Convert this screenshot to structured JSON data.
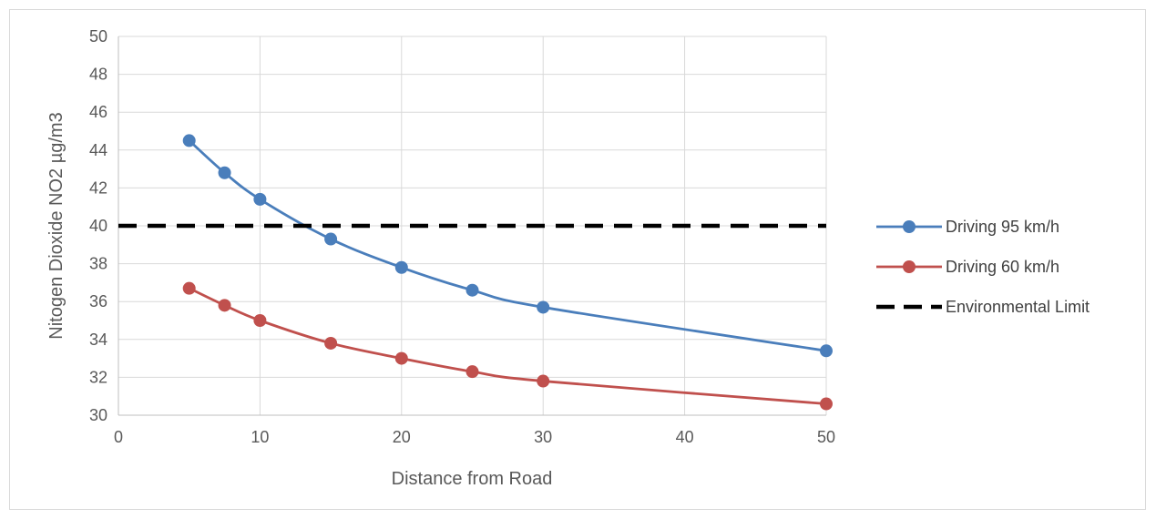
{
  "chart_data": {
    "type": "line",
    "title": "",
    "xlabel": "Distance from Road",
    "ylabel": "Nitogen Dioxide NO2 µg/m3",
    "xlim": [
      0,
      50
    ],
    "ylim": [
      30,
      50
    ],
    "x_ticks": [
      "0",
      "10",
      "20",
      "30",
      "40",
      "50"
    ],
    "y_ticks": [
      "30",
      "32",
      "34",
      "36",
      "38",
      "40",
      "42",
      "44",
      "46",
      "48",
      "50"
    ],
    "grid": true,
    "legend_position": "right",
    "series": [
      {
        "name": "Driving 95 km/h",
        "color": "#4a7ebb",
        "style": "smooth-line-with-markers",
        "x": [
          5,
          7.5,
          10,
          15,
          20,
          25,
          30,
          50
        ],
        "y": [
          44.5,
          42.8,
          41.4,
          39.3,
          37.8,
          36.6,
          35.7,
          33.4
        ]
      },
      {
        "name": "Driving 60 km/h",
        "color": "#c0504d",
        "style": "smooth-line-with-markers",
        "x": [
          5,
          7.5,
          10,
          15,
          20,
          25,
          30,
          50
        ],
        "y": [
          36.7,
          35.8,
          35.0,
          33.8,
          33.0,
          32.3,
          31.8,
          30.6
        ]
      },
      {
        "name": "Environmental Limit",
        "color": "#000000",
        "style": "dashed-line",
        "x": [
          0,
          50
        ],
        "y": [
          40,
          40
        ]
      }
    ]
  }
}
